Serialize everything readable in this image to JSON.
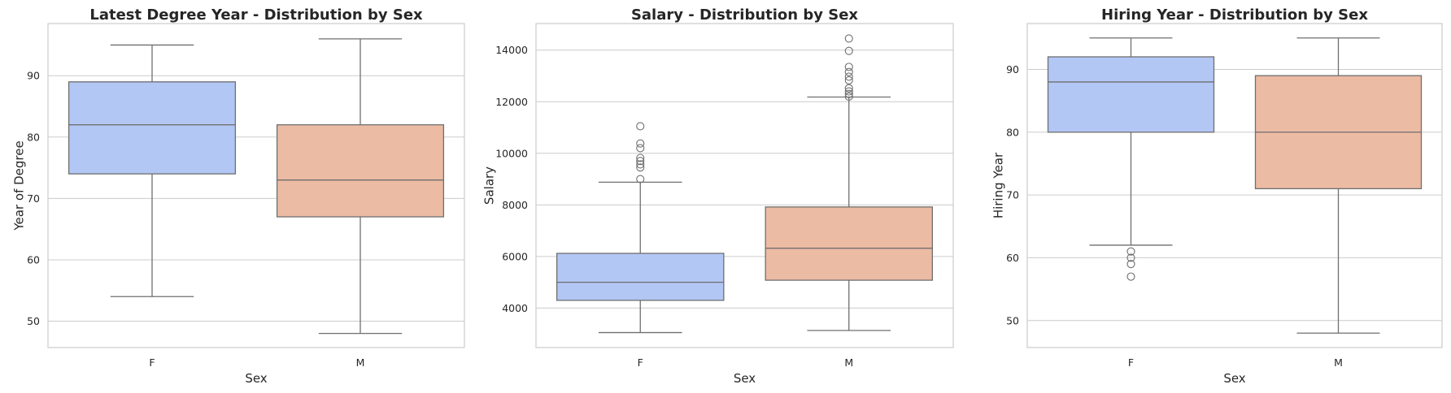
{
  "colors": {
    "F": "#b3c7f5",
    "M": "#ecbba4",
    "box_edge": "#6f6f6f",
    "grid": "#cccccc",
    "frame": "#cccccc"
  },
  "chart_data": [
    {
      "type": "box",
      "title": "Latest Degree Year - Distribution by Sex",
      "xlabel": "Sex",
      "ylabel": "Year of Degree",
      "ylim": [
        45.7,
        98.5
      ],
      "yticks": [
        50,
        60,
        70,
        80,
        90
      ],
      "grid": true,
      "categories": [
        "F",
        "M"
      ],
      "boxes": [
        {
          "category": "F",
          "whisker_low": 54,
          "q1": 74,
          "median": 82,
          "q3": 89,
          "whisker_high": 95,
          "outliers": []
        },
        {
          "category": "M",
          "whisker_low": 48,
          "q1": 67,
          "median": 73,
          "q3": 82,
          "whisker_high": 96,
          "outliers": []
        }
      ]
    },
    {
      "type": "box",
      "title": "Salary - Distribution by Sex",
      "xlabel": "Sex",
      "ylabel": "Salary",
      "ylim": [
        2470,
        15030
      ],
      "yticks": [
        4000,
        6000,
        8000,
        10000,
        12000,
        14000
      ],
      "grid": true,
      "categories": [
        "F",
        "M"
      ],
      "boxes": [
        {
          "category": "F",
          "whisker_low": 3050,
          "q1": 4300,
          "median": 5000,
          "q3": 6120,
          "whisker_high": 8880,
          "outliers": [
            9000,
            9450,
            9570,
            9700,
            9820,
            10200,
            10380,
            11050
          ]
        },
        {
          "category": "M",
          "whisker_low": 3130,
          "q1": 5080,
          "median": 6320,
          "q3": 7920,
          "whisker_high": 12180,
          "outliers": [
            12200,
            12300,
            12400,
            12520,
            12830,
            12970,
            13150,
            13350,
            13970,
            14450
          ]
        }
      ]
    },
    {
      "type": "box",
      "title": "Hiring Year - Distribution by Sex",
      "xlabel": "Sex",
      "ylabel": "Hiring Year",
      "ylim": [
        45.7,
        97.3
      ],
      "yticks": [
        50,
        60,
        70,
        80,
        90
      ],
      "grid": true,
      "categories": [
        "F",
        "M"
      ],
      "boxes": [
        {
          "category": "F",
          "whisker_low": 62,
          "q1": 80,
          "median": 88,
          "q3": 92,
          "whisker_high": 95,
          "outliers": [
            57,
            59,
            60,
            61
          ]
        },
        {
          "category": "M",
          "whisker_low": 48,
          "q1": 71,
          "median": 80,
          "q3": 89,
          "whisker_high": 95,
          "outliers": []
        }
      ]
    }
  ]
}
